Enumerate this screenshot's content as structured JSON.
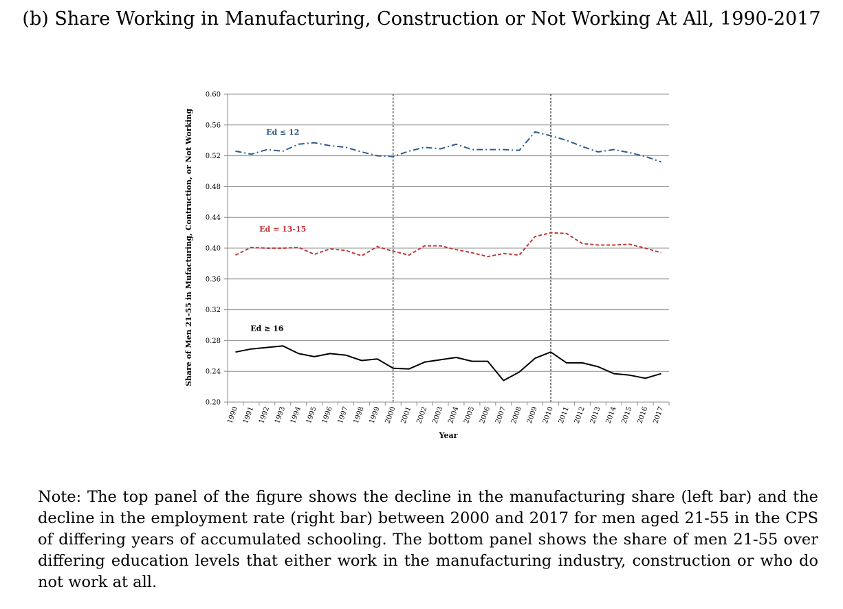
{
  "figure": {
    "title": "(b) Share Working in Manufacturing, Construction or Not Working At All, 1990-2017",
    "note": "Note: The top panel of the figure shows the decline in the manufacturing share (left bar) and the decline in the employment rate (right bar) between 2000 and 2017 for men aged 21-55 in the CPS of differing years of accumulated schooling. The bottom panel shows the share of men 21-55 over differing education levels that either work in the manufacturing industry, construction or who do not work at all."
  },
  "chart_data": {
    "type": "line",
    "xlabel": "Year",
    "ylabel": "Share of Men 21-55 in Mufacturing, Contruction, or Not Working",
    "x": [
      "1990",
      "1991",
      "1992",
      "1993",
      "1994",
      "1995",
      "1996",
      "1997",
      "1998",
      "1999",
      "2000",
      "2001",
      "2002",
      "2003",
      "2004",
      "2005",
      "2006",
      "2007",
      "2008",
      "2009",
      "2010",
      "2011",
      "2012",
      "2013",
      "2014",
      "2015",
      "2016",
      "2017"
    ],
    "ylim": [
      0.2,
      0.6
    ],
    "yticks": [
      "0.20",
      "0.24",
      "0.28",
      "0.32",
      "0.36",
      "0.40",
      "0.44",
      "0.48",
      "0.52",
      "0.56",
      "0.60"
    ],
    "grid": "horizontal",
    "vlines": [
      "2000",
      "2010"
    ],
    "series": [
      {
        "name": "Ed ≤ 12",
        "color": "#2e5b8c",
        "style": "dash-dot",
        "label_at": "1993",
        "values": [
          0.526,
          0.522,
          0.528,
          0.526,
          0.535,
          0.537,
          0.533,
          0.531,
          0.525,
          0.52,
          0.519,
          0.526,
          0.531,
          0.529,
          0.535,
          0.528,
          0.528,
          0.528,
          0.527,
          0.551,
          0.546,
          0.54,
          0.532,
          0.525,
          0.528,
          0.524,
          0.519,
          0.512
        ]
      },
      {
        "name": "Ed = 13-15",
        "color": "#c0393b",
        "style": "dashed",
        "label_at": "1993",
        "values": [
          0.391,
          0.401,
          0.4,
          0.4,
          0.401,
          0.392,
          0.399,
          0.397,
          0.39,
          0.402,
          0.396,
          0.391,
          0.403,
          0.403,
          0.398,
          0.394,
          0.389,
          0.393,
          0.391,
          0.415,
          0.42,
          0.419,
          0.406,
          0.404,
          0.404,
          0.405,
          0.4,
          0.394
        ]
      },
      {
        "name": "Ed ≥ 16",
        "color": "#000000",
        "style": "solid",
        "label_at": "1992",
        "values": [
          0.265,
          0.269,
          0.271,
          0.273,
          0.263,
          0.259,
          0.263,
          0.261,
          0.254,
          0.256,
          0.244,
          0.243,
          0.252,
          0.255,
          0.258,
          0.253,
          0.253,
          0.228,
          0.239,
          0.257,
          0.265,
          0.251,
          0.251,
          0.246,
          0.237,
          0.235,
          0.231,
          0.237
        ]
      }
    ]
  }
}
